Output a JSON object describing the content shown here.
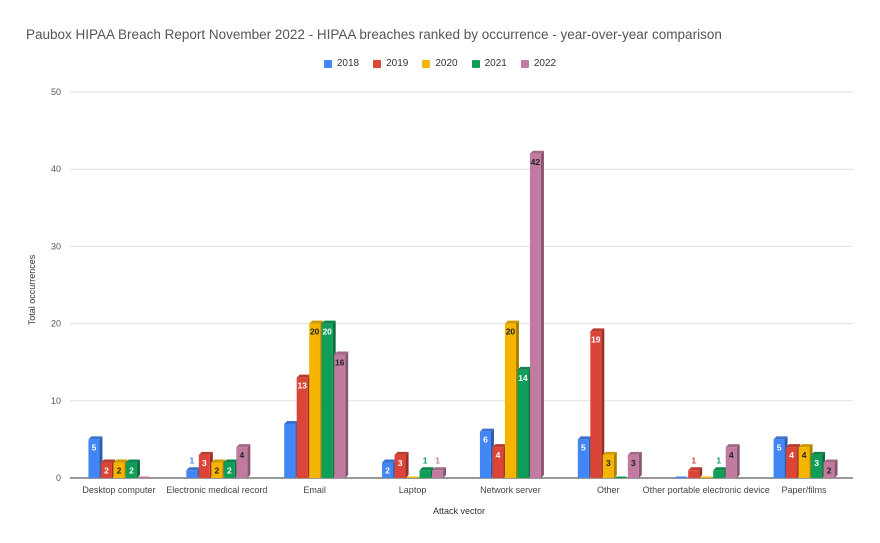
{
  "chart_data": {
    "type": "bar",
    "title": "Paubox HIPAA Breach Report November 2022 - HIPAA breaches ranked by occurrence - year-over-year comparison",
    "xlabel": "Attack vector",
    "ylabel": "Total occurrences",
    "ylim": [
      0,
      50
    ],
    "yticks": [
      0,
      10,
      20,
      30,
      40,
      50
    ],
    "grid": true,
    "legend_position": "top",
    "categories": [
      "Desktop computer",
      "Electronic medical record",
      "Email",
      "Laptop",
      "Network server",
      "Other",
      "Other portable electronic device",
      "Paper/films"
    ],
    "series": [
      {
        "name": "2018",
        "color": "#4285F4",
        "values": [
          5,
          1,
          7,
          2,
          6,
          5,
          0,
          5
        ],
        "labels": [
          "5",
          "1",
          "",
          "2",
          "6",
          "5",
          "",
          "5"
        ]
      },
      {
        "name": "2019",
        "color": "#DB4437",
        "values": [
          2,
          3,
          13,
          3,
          4,
          19,
          1,
          4
        ],
        "labels": [
          "2",
          "3",
          "13",
          "3",
          "4",
          "19",
          "1",
          "4"
        ]
      },
      {
        "name": "2020",
        "color": "#F4B400",
        "values": [
          2,
          2,
          20,
          0,
          20,
          3,
          0,
          4
        ],
        "labels": [
          "2",
          "2",
          "20",
          "",
          "20",
          "3",
          "",
          "4"
        ]
      },
      {
        "name": "2021",
        "color": "#0F9D58",
        "values": [
          2,
          2,
          20,
          1,
          14,
          0,
          1,
          3
        ],
        "labels": [
          "2",
          "2",
          "20",
          "1",
          "14",
          "",
          "1",
          "3"
        ]
      },
      {
        "name": "2022",
        "color": "#C27BA0",
        "values": [
          0,
          4,
          16,
          1,
          42,
          3,
          4,
          2
        ],
        "labels": [
          "",
          "4",
          "16",
          "1",
          "42",
          "3",
          "4",
          "2"
        ]
      }
    ]
  }
}
